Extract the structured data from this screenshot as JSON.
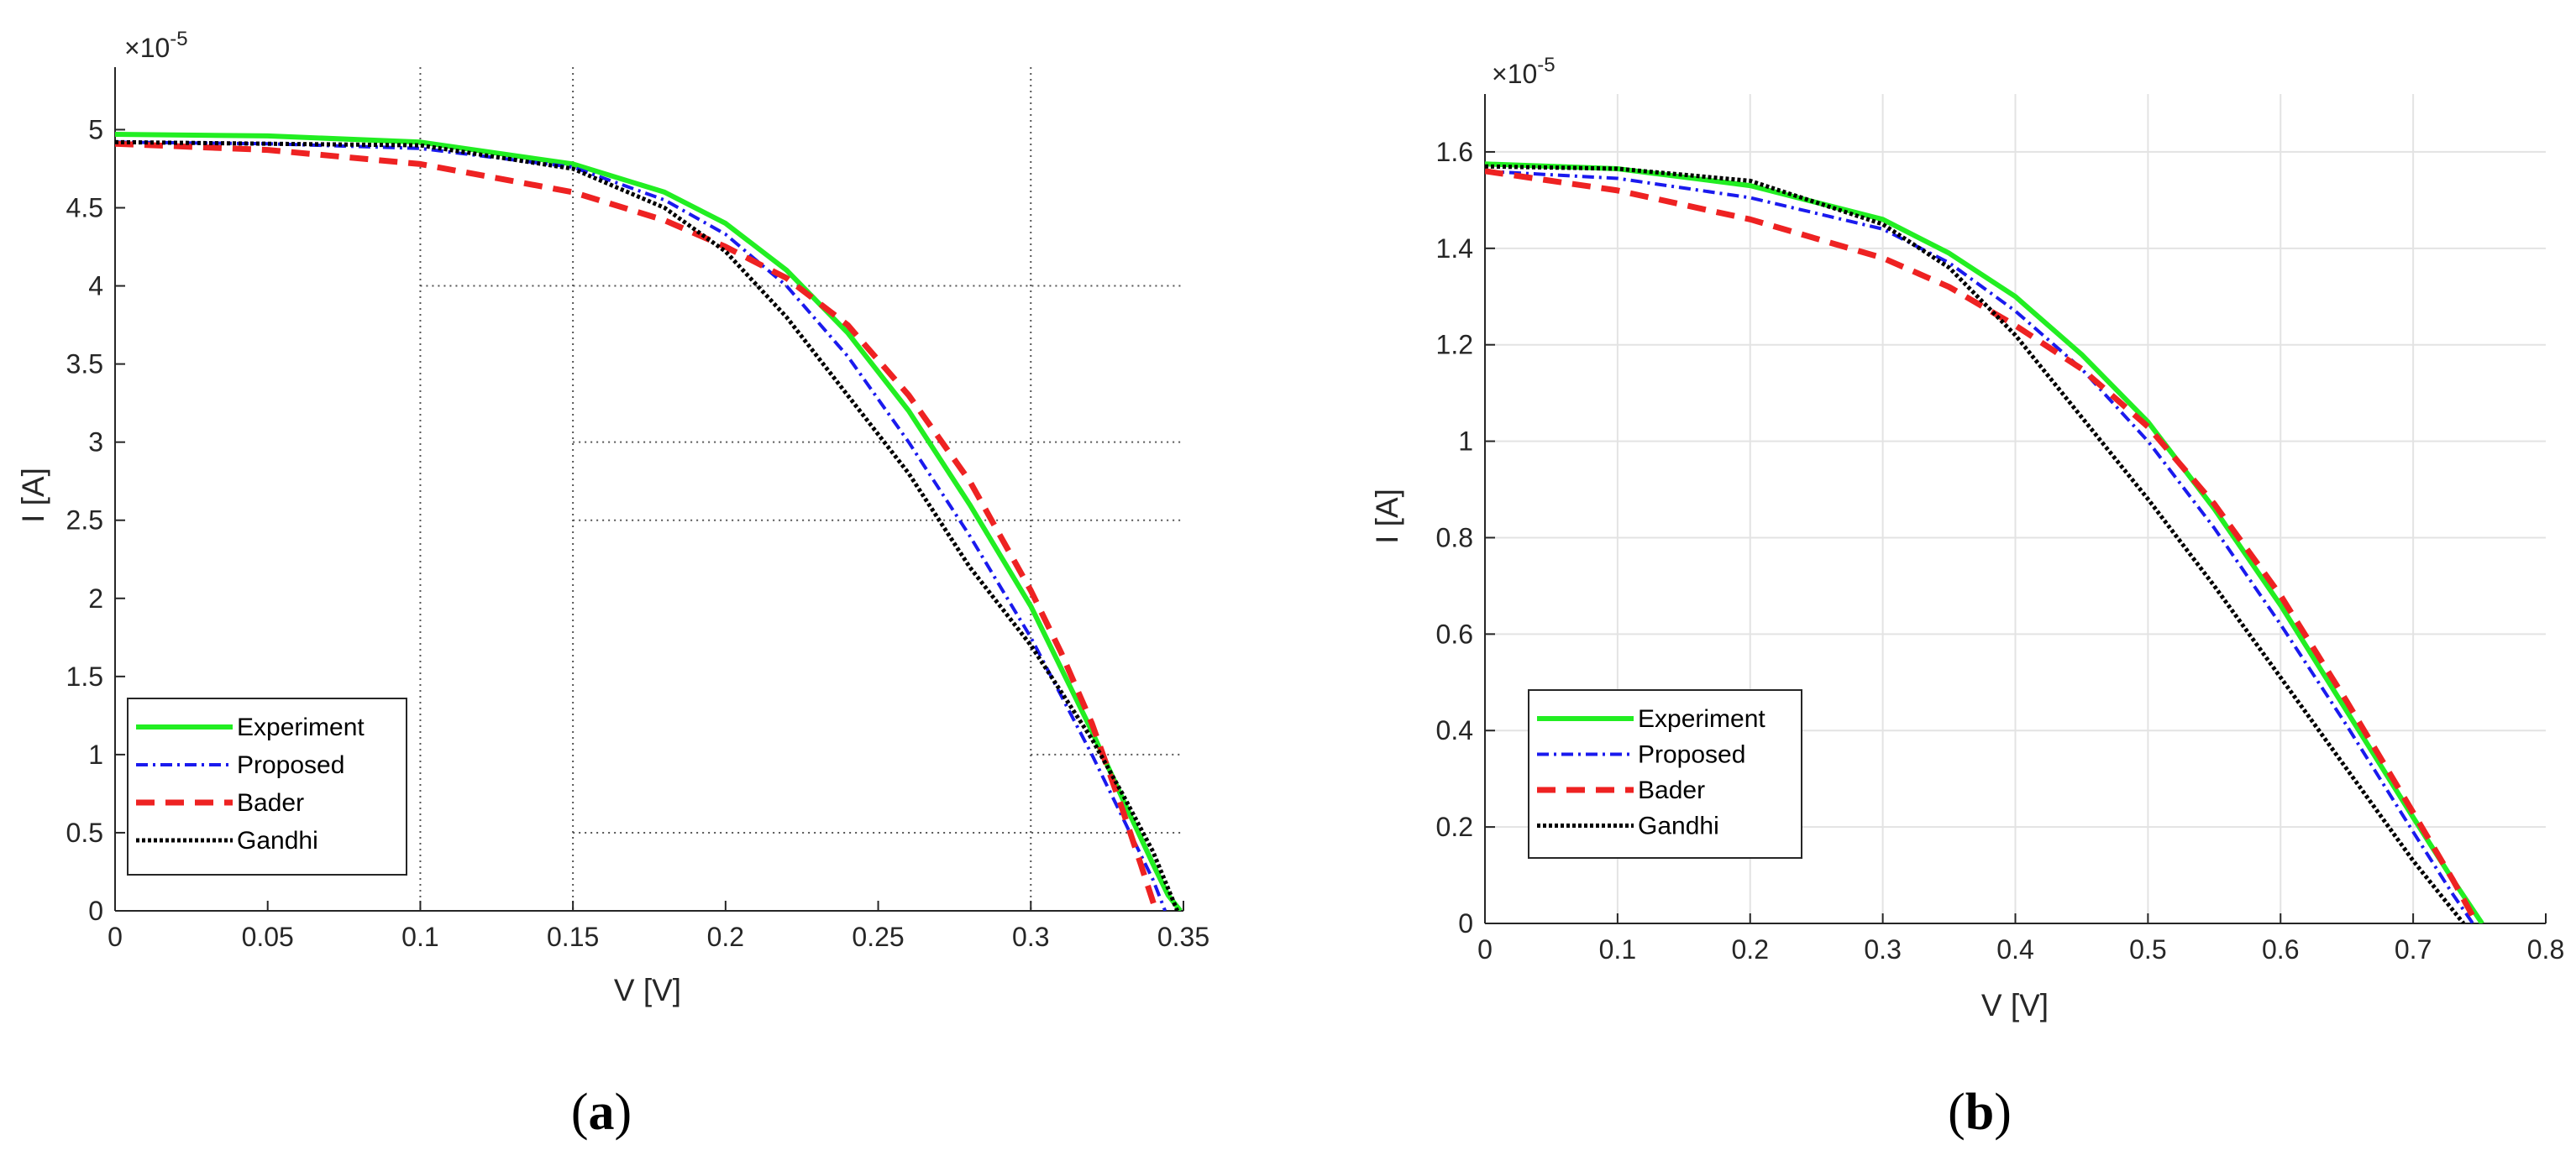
{
  "chart_data": [
    {
      "type": "line",
      "panel_caption": {
        "open": "(",
        "letter": "a",
        "close": ")"
      },
      "xlabel": "V [V]",
      "ylabel": "I [A]",
      "y_exponent_label": "×10",
      "y_exponent_power": "-5",
      "xlim": [
        0,
        0.35
      ],
      "ylim": [
        0,
        5.4
      ],
      "xticks": [
        0,
        0.05,
        0.1,
        0.15,
        0.2,
        0.25,
        0.3,
        0.35
      ],
      "xtick_labels": [
        "0",
        "0.05",
        "0.1",
        "0.15",
        "0.2",
        "0.25",
        "0.3",
        "0.35"
      ],
      "yticks": [
        0,
        0.5,
        1,
        1.5,
        2,
        2.5,
        3,
        3.5,
        4,
        4.5,
        5
      ],
      "ytick_labels": [
        "0",
        "0.5",
        "1",
        "1.5",
        "2",
        "2.5",
        "3",
        "3.5",
        "4",
        "4.5",
        "5"
      ],
      "grid": "partial-dotted",
      "grid_vlines": [
        0.1,
        0.15,
        0.3
      ],
      "grid_hlines": [
        {
          "y": 4,
          "x_from": 0.1
        },
        {
          "y": 3,
          "x_from": 0.15
        },
        {
          "y": 2.5,
          "x_from": 0.15
        },
        {
          "y": 1,
          "x_from": 0.3
        },
        {
          "y": 0.5,
          "x_from": 0.15
        }
      ],
      "legend_position": "bottom-left",
      "series": [
        {
          "name": "Experiment",
          "color": "#22ee22",
          "style": "solid",
          "x": [
            0,
            0.05,
            0.1,
            0.15,
            0.18,
            0.2,
            0.22,
            0.24,
            0.26,
            0.28,
            0.3,
            0.32,
            0.33,
            0.34,
            0.345,
            0.349
          ],
          "y": [
            4.97,
            4.96,
            4.92,
            4.78,
            4.6,
            4.4,
            4.1,
            3.7,
            3.2,
            2.6,
            1.95,
            1.15,
            0.72,
            0.3,
            0.1,
            0
          ]
        },
        {
          "name": "Proposed",
          "color": "#1a1aee",
          "style": "dashdot",
          "x": [
            0,
            0.05,
            0.1,
            0.15,
            0.18,
            0.2,
            0.22,
            0.24,
            0.26,
            0.28,
            0.3,
            0.32,
            0.33,
            0.34,
            0.344
          ],
          "y": [
            4.92,
            4.91,
            4.88,
            4.76,
            4.55,
            4.33,
            4.0,
            3.55,
            3.0,
            2.4,
            1.75,
            1.0,
            0.6,
            0.2,
            0
          ]
        },
        {
          "name": "Bader",
          "color": "#ee2222",
          "style": "dashed",
          "x": [
            0,
            0.05,
            0.1,
            0.15,
            0.18,
            0.2,
            0.22,
            0.24,
            0.26,
            0.28,
            0.3,
            0.31,
            0.32,
            0.33,
            0.336,
            0.341
          ],
          "y": [
            4.91,
            4.87,
            4.78,
            4.6,
            4.42,
            4.25,
            4.05,
            3.75,
            3.3,
            2.75,
            2.05,
            1.65,
            1.2,
            0.65,
            0.3,
            0
          ]
        },
        {
          "name": "Gandhi",
          "color": "#000000",
          "style": "dotted",
          "x": [
            0,
            0.05,
            0.1,
            0.15,
            0.18,
            0.2,
            0.22,
            0.24,
            0.26,
            0.28,
            0.3,
            0.32,
            0.33,
            0.34,
            0.348
          ],
          "y": [
            4.92,
            4.91,
            4.9,
            4.75,
            4.5,
            4.22,
            3.8,
            3.3,
            2.8,
            2.2,
            1.7,
            1.1,
            0.75,
            0.38,
            0
          ]
        }
      ]
    },
    {
      "type": "line",
      "panel_caption": {
        "open": "(",
        "letter": "b",
        "close": ")"
      },
      "xlabel": "V [V]",
      "ylabel": "I [A]",
      "y_exponent_label": "×10",
      "y_exponent_power": "-5",
      "xlim": [
        0,
        0.8
      ],
      "ylim": [
        0,
        1.72
      ],
      "xticks": [
        0,
        0.1,
        0.2,
        0.3,
        0.4,
        0.5,
        0.6,
        0.7,
        0.8
      ],
      "xtick_labels": [
        "0",
        "0.1",
        "0.2",
        "0.3",
        "0.4",
        "0.5",
        "0.6",
        "0.7",
        "0.8"
      ],
      "yticks": [
        0,
        0.2,
        0.4,
        0.6,
        0.8,
        1,
        1.2,
        1.4,
        1.6
      ],
      "ytick_labels": [
        "0",
        "0.2",
        "0.4",
        "0.6",
        "0.8",
        "1",
        "1.2",
        "1.4",
        "1.6"
      ],
      "grid": "full",
      "legend_position": "bottom-left",
      "series": [
        {
          "name": "Experiment",
          "color": "#22ee22",
          "style": "solid",
          "x": [
            0,
            0.1,
            0.2,
            0.3,
            0.35,
            0.4,
            0.45,
            0.5,
            0.55,
            0.6,
            0.65,
            0.7,
            0.73,
            0.752
          ],
          "y": [
            1.575,
            1.565,
            1.53,
            1.46,
            1.39,
            1.3,
            1.18,
            1.04,
            0.86,
            0.66,
            0.44,
            0.22,
            0.09,
            0
          ]
        },
        {
          "name": "Proposed",
          "color": "#1a1aee",
          "style": "dashdot",
          "x": [
            0,
            0.1,
            0.2,
            0.3,
            0.35,
            0.4,
            0.45,
            0.5,
            0.55,
            0.6,
            0.65,
            0.7,
            0.73,
            0.745
          ],
          "y": [
            1.56,
            1.545,
            1.505,
            1.44,
            1.37,
            1.27,
            1.15,
            1.0,
            0.82,
            0.62,
            0.41,
            0.19,
            0.06,
            0
          ]
        },
        {
          "name": "Bader",
          "color": "#ee2222",
          "style": "dashed",
          "x": [
            0,
            0.1,
            0.2,
            0.3,
            0.35,
            0.4,
            0.45,
            0.5,
            0.55,
            0.6,
            0.65,
            0.7,
            0.73,
            0.748
          ],
          "y": [
            1.56,
            1.52,
            1.46,
            1.38,
            1.32,
            1.24,
            1.15,
            1.03,
            0.87,
            0.68,
            0.46,
            0.23,
            0.09,
            0
          ]
        },
        {
          "name": "Gandhi",
          "color": "#000000",
          "style": "dotted",
          "x": [
            0,
            0.1,
            0.2,
            0.3,
            0.35,
            0.4,
            0.45,
            0.5,
            0.55,
            0.6,
            0.65,
            0.7,
            0.738
          ],
          "y": [
            1.57,
            1.565,
            1.54,
            1.45,
            1.36,
            1.22,
            1.05,
            0.88,
            0.7,
            0.51,
            0.32,
            0.13,
            0
          ]
        }
      ]
    }
  ]
}
